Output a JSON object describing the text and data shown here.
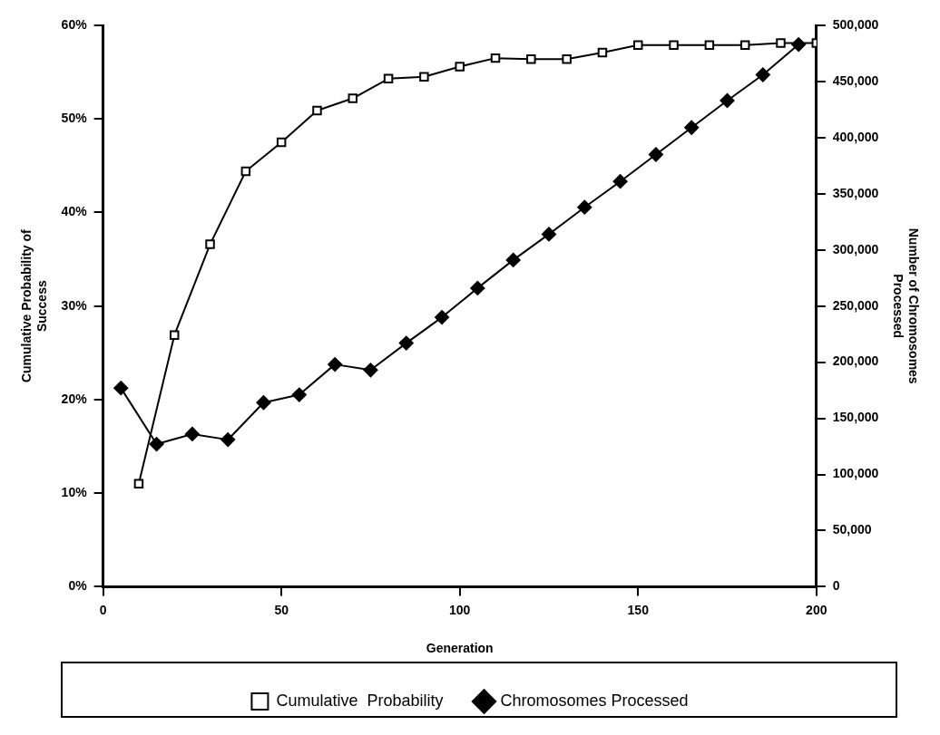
{
  "chart_data": {
    "type": "line",
    "xlabel": "Generation",
    "ylabel": "Cumulative Probability of Success",
    "y2label": "Number of Chromosomes Processed",
    "xlim": [
      0,
      200
    ],
    "xticks": [
      0,
      50,
      100,
      150,
      200
    ],
    "ylim": [
      0,
      60
    ],
    "yticks": [
      {
        "value": 0,
        "label": "0%"
      },
      {
        "value": 10,
        "label": "10%"
      },
      {
        "value": 20,
        "label": "20%"
      },
      {
        "value": 30,
        "label": "30%"
      },
      {
        "value": 40,
        "label": "40%"
      },
      {
        "value": 50,
        "label": "50%"
      },
      {
        "value": 60,
        "label": "60%"
      }
    ],
    "y2lim": [
      0,
      500000
    ],
    "y2ticks": [
      {
        "value": 0,
        "label": "0"
      },
      {
        "value": 50000,
        "label": "50,000"
      },
      {
        "value": 100000,
        "label": "100,000"
      },
      {
        "value": 150000,
        "label": "150,000"
      },
      {
        "value": 200000,
        "label": "200,000"
      },
      {
        "value": 250000,
        "label": "250,000"
      },
      {
        "value": 300000,
        "label": "300,000"
      },
      {
        "value": 350000,
        "label": "350,000"
      },
      {
        "value": 400000,
        "label": "400,000"
      },
      {
        "value": 450000,
        "label": "450,000"
      },
      {
        "value": 500000,
        "label": "500,000"
      }
    ],
    "grid": false,
    "legend": "bottom",
    "line_style": "solid",
    "series": [
      {
        "name": "Cumulative  Probability",
        "color": "#000000",
        "marker": "square",
        "axis": "y",
        "x": [
          10,
          20,
          30,
          40,
          50,
          60,
          70,
          80,
          90,
          100,
          110,
          120,
          130,
          140,
          150,
          160,
          170,
          180,
          190,
          200
        ],
        "values": [
          11,
          26.9,
          36.6,
          44.4,
          47.5,
          50.9,
          52.2,
          54.3,
          54.5,
          55.6,
          56.5,
          56.4,
          56.4,
          57.1,
          57.9,
          57.9,
          57.9,
          57.9,
          58.1,
          58.1
        ]
      },
      {
        "name": "Chromosomes Processed",
        "color": "#000000",
        "marker": "diamond",
        "axis": "y2",
        "x": [
          5,
          15,
          25,
          35,
          45,
          55,
          65,
          75,
          85,
          95,
          105,
          115,
          125,
          135,
          145,
          155,
          165,
          175,
          185,
          195
        ],
        "values": [
          177000,
          127000,
          136000,
          131000,
          164000,
          171000,
          198000,
          193000,
          217000,
          240000,
          266000,
          291000,
          314000,
          338000,
          361000,
          385000,
          409000,
          433000,
          456000,
          483000
        ]
      }
    ]
  }
}
